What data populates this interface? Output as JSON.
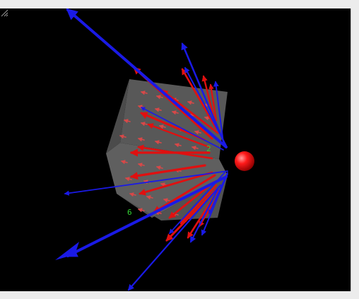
{
  "viewer": {
    "background_color": "#000000",
    "frame_color": "#ececec",
    "cube_color": "#9a9a9a",
    "field_arrow_color": "#e01010",
    "line_arrow_color": "#1a1ae6",
    "sphere_color": "#ff1a1a",
    "axis_color": "#34d234"
  },
  "axis_labels": {
    "label_a": "2",
    "label_b": "6"
  },
  "icons": {
    "resize": "resize-grip-icon",
    "sphere": "charge-sphere",
    "cube": "box-volume"
  }
}
